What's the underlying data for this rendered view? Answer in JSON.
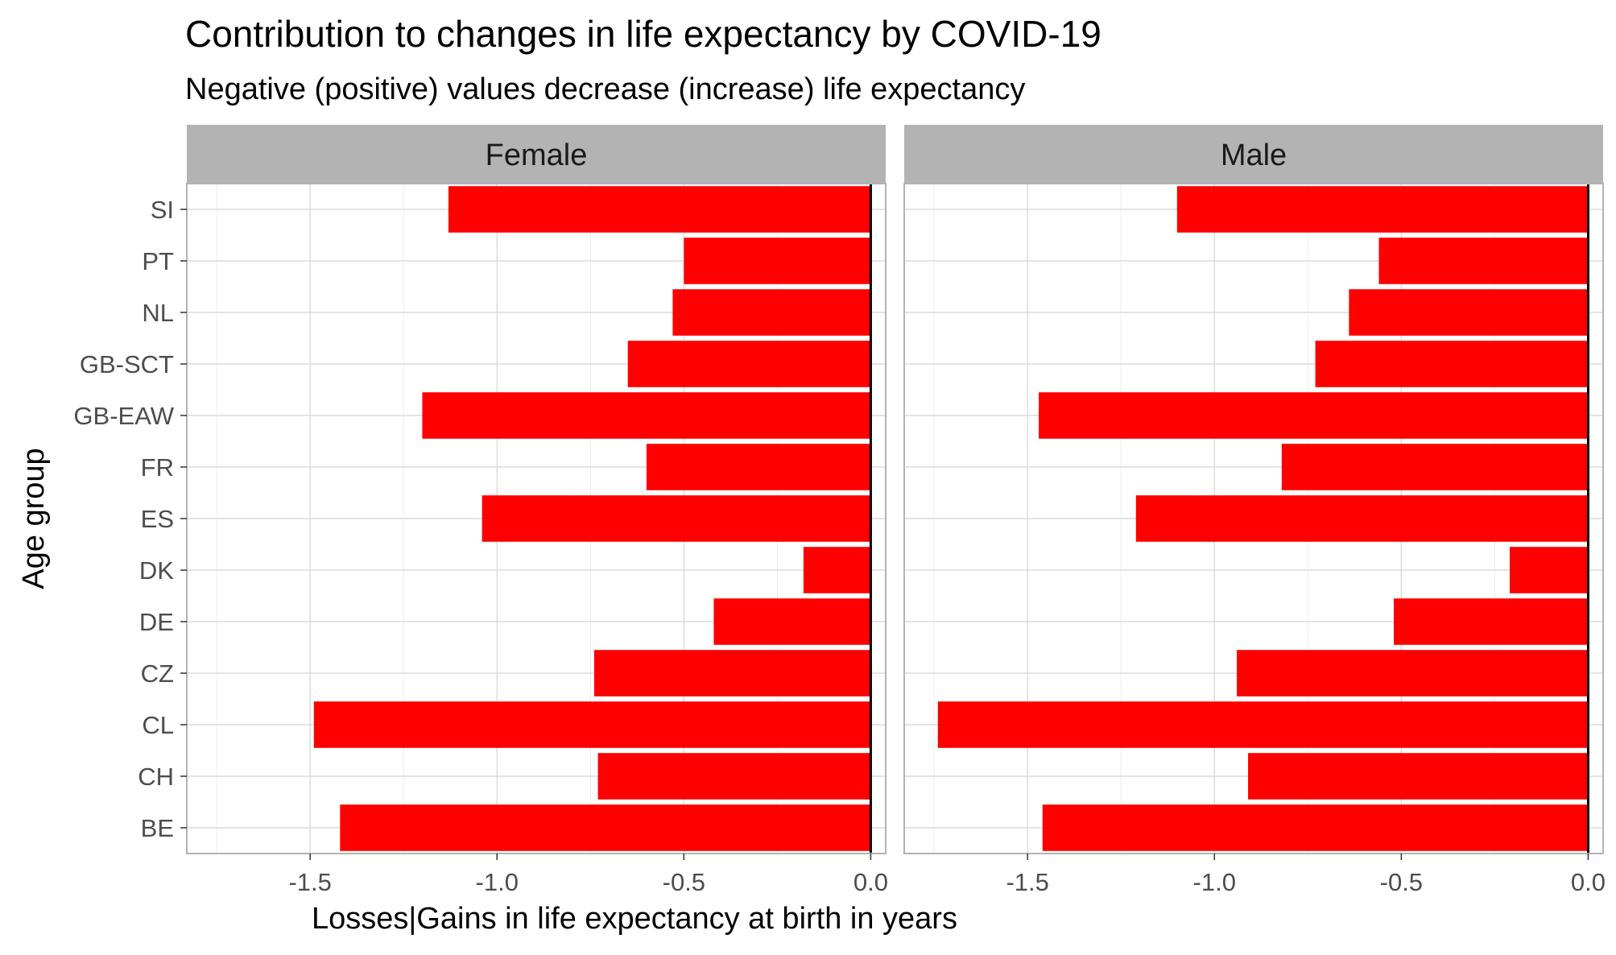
{
  "chart_data": {
    "type": "bar",
    "orientation": "horizontal",
    "title": "Contribution to changes in life expectancy by COVID-19",
    "subtitle": "Negative (positive) values decrease (increase) life expectancy",
    "xlabel": "Losses|Gains in life expectancy at birth in years",
    "ylabel": "Age group",
    "xlim": [
      -1.83,
      0.04
    ],
    "xticks": [
      -1.5,
      -1.0,
      -0.5,
      0.0
    ],
    "xtick_labels": [
      "-1.5",
      "-1.0",
      "-0.5",
      "0.0"
    ],
    "categories": [
      "BE",
      "CH",
      "CL",
      "CZ",
      "DE",
      "DK",
      "ES",
      "FR",
      "GB-EAW",
      "GB-SCT",
      "NL",
      "PT",
      "SI"
    ],
    "facets": [
      {
        "label": "Female",
        "values": [
          -1.42,
          -0.73,
          -1.49,
          -0.74,
          -0.42,
          -0.18,
          -1.04,
          -0.6,
          -1.2,
          -0.65,
          -0.53,
          -0.5,
          -1.13
        ]
      },
      {
        "label": "Male",
        "values": [
          -1.46,
          -0.91,
          -1.74,
          -0.94,
          -0.52,
          -0.21,
          -1.21,
          -0.82,
          -1.47,
          -0.73,
          -0.64,
          -0.56,
          -1.1
        ]
      }
    ],
    "bar_color": "#ff0000",
    "grid": true,
    "legend": "none"
  }
}
